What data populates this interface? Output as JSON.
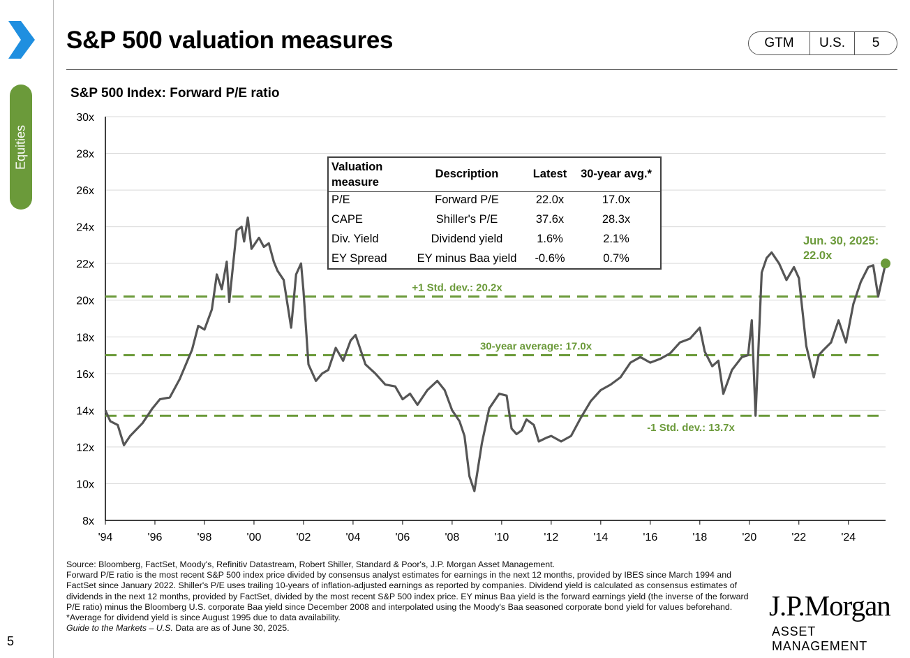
{
  "header": {
    "title": "S&P 500 valuation measures",
    "tags": [
      "GTM",
      "U.S.",
      "5"
    ],
    "side_tab": "Equities",
    "page_number": "5"
  },
  "colors": {
    "accent": "#6b9a3a",
    "chevron": "#1f8fe0",
    "line": "#555555"
  },
  "chart_data": {
    "type": "line",
    "title": "S&P 500 Index: Forward P/E ratio",
    "ylim": [
      8,
      30
    ],
    "yticks": [
      "8x",
      "10x",
      "12x",
      "14x",
      "16x",
      "18x",
      "20x",
      "22x",
      "24x",
      "26x",
      "28x",
      "30x"
    ],
    "xlim": [
      1994,
      2025.5
    ],
    "xticks": [
      "'94",
      "'96",
      "'98",
      "'00",
      "'02",
      "'04",
      "'06",
      "'08",
      "'10",
      "'12",
      "'14",
      "'16",
      "'18",
      "'20",
      "'22",
      "'24"
    ],
    "series": [
      {
        "name": "Forward P/E",
        "x": [
          1994.0,
          1994.2,
          1994.5,
          1994.75,
          1995.0,
          1995.5,
          1995.9,
          1996.2,
          1996.6,
          1997.0,
          1997.5,
          1997.75,
          1998.0,
          1998.3,
          1998.5,
          1998.7,
          1998.9,
          1999.0,
          1999.3,
          1999.5,
          1999.6,
          1999.75,
          1999.9,
          2000.2,
          2000.4,
          2000.6,
          2000.8,
          2000.95,
          2001.2,
          2001.5,
          2001.7,
          2001.9,
          2002.0,
          2002.2,
          2002.5,
          2002.75,
          2003.0,
          2003.3,
          2003.6,
          2003.9,
          2004.1,
          2004.5,
          2004.9,
          2005.3,
          2005.7,
          2006.0,
          2006.3,
          2006.6,
          2007.0,
          2007.4,
          2007.7,
          2008.0,
          2008.3,
          2008.5,
          2008.7,
          2008.9,
          2009.2,
          2009.5,
          2009.9,
          2010.2,
          2010.4,
          2010.6,
          2010.8,
          2011.0,
          2011.3,
          2011.5,
          2011.8,
          2012.0,
          2012.4,
          2012.8,
          2013.2,
          2013.6,
          2014.0,
          2014.4,
          2014.8,
          2015.2,
          2015.6,
          2016.0,
          2016.4,
          2016.8,
          2017.2,
          2017.6,
          2018.0,
          2018.2,
          2018.5,
          2018.75,
          2018.95,
          2019.3,
          2019.7,
          2019.95,
          2020.1,
          2020.25,
          2020.5,
          2020.7,
          2020.9,
          2021.2,
          2021.5,
          2021.8,
          2022.0,
          2022.3,
          2022.6,
          2022.8,
          2023.0,
          2023.3,
          2023.6,
          2023.9,
          2024.2,
          2024.5,
          2024.8,
          2025.0,
          2025.2,
          2025.5
        ],
        "y": [
          14.0,
          13.4,
          13.2,
          12.1,
          12.6,
          13.3,
          14.1,
          14.6,
          14.7,
          15.7,
          17.3,
          18.6,
          18.4,
          19.5,
          21.4,
          20.6,
          22.1,
          19.9,
          23.8,
          24.0,
          23.2,
          24.5,
          22.8,
          23.4,
          22.9,
          23.1,
          22.1,
          21.6,
          21.1,
          18.5,
          21.4,
          22.0,
          20.5,
          16.5,
          15.6,
          16.0,
          16.2,
          17.4,
          16.7,
          17.8,
          18.1,
          16.5,
          16.0,
          15.4,
          15.3,
          14.6,
          14.9,
          14.3,
          15.1,
          15.6,
          15.1,
          14.0,
          13.4,
          12.6,
          10.4,
          9.6,
          12.2,
          14.1,
          14.9,
          14.8,
          13.0,
          12.7,
          12.9,
          13.5,
          13.2,
          12.3,
          12.5,
          12.6,
          12.3,
          12.6,
          13.6,
          14.5,
          15.1,
          15.4,
          15.8,
          16.6,
          16.9,
          16.6,
          16.8,
          17.1,
          17.7,
          17.9,
          18.5,
          17.2,
          16.4,
          16.7,
          14.9,
          16.2,
          16.9,
          17.0,
          18.9,
          13.7,
          21.5,
          22.3,
          22.6,
          22.0,
          21.1,
          21.8,
          21.2,
          17.5,
          15.8,
          17.0,
          17.3,
          17.7,
          18.9,
          17.7,
          19.8,
          21.0,
          21.8,
          21.9,
          20.2,
          22.0
        ]
      }
    ],
    "reference_lines": [
      {
        "label": "+1 Std. dev.: 20.2x",
        "value": 20.2
      },
      {
        "label": "30-year average: 17.0x",
        "value": 17.0
      },
      {
        "label": "-1 Std. dev.: 13.7x",
        "value": 13.7
      }
    ],
    "annotation": {
      "label_line1": "Jun. 30, 2025:",
      "label_line2": "22.0x",
      "x": 2025.5,
      "y": 22.0
    }
  },
  "valuation_table": {
    "headers": [
      "Valuation measure",
      "Description",
      "Latest",
      "30-year avg.*"
    ],
    "rows": [
      [
        "P/E",
        "Forward P/E",
        "22.0x",
        "17.0x"
      ],
      [
        "CAPE",
        "Shiller's P/E",
        "37.6x",
        "28.3x"
      ],
      [
        "Div. Yield",
        "Dividend yield",
        "1.6%",
        "2.1%"
      ],
      [
        "EY Spread",
        "EY minus Baa yield",
        "-0.6%",
        "0.7%"
      ]
    ]
  },
  "footnote": {
    "source": "Source: Bloomberg, FactSet, Moody's, Refinitiv Datastream, Robert Shiller, Standard & Poor's, J.P. Morgan Asset Management.",
    "body": "Forward P/E ratio is the most recent S&P 500 index price divided by consensus analyst estimates for earnings in the next 12 months, provided by IBES since March 1994 and FactSet since January 2022. Shiller's P/E uses trailing 10-years of inflation-adjusted earnings as reported by companies. Dividend yield is calculated as consensus estimates of dividends in the next 12 months, provided by FactSet, divided by the most recent S&P 500 index price. EY minus Baa yield is the forward earnings yield (the inverse of the forward P/E ratio) minus the Bloomberg U.S. corporate Baa yield since December 2008 and interpolated using the Moody's Baa seasoned corporate bond yield for values beforehand. *Average for dividend yield is since August 1995 due to data availability.",
    "guide": "Guide to the Markets – U.S.",
    "asof": " Data are as of June 30, 2025."
  },
  "brand": {
    "name": "J.P.Morgan",
    "sub": "ASSET MANAGEMENT"
  }
}
